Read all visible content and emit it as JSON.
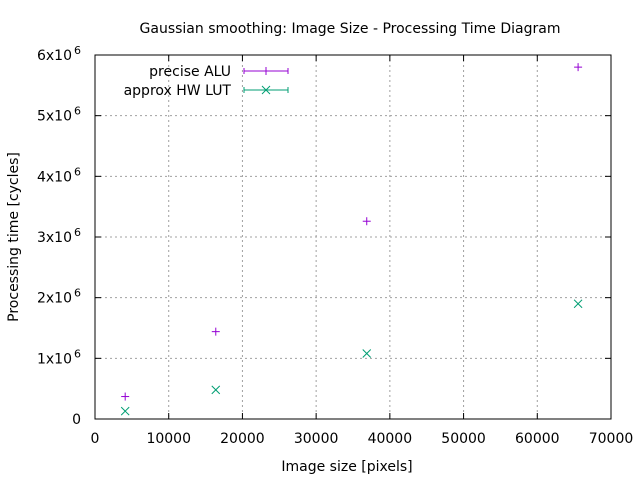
{
  "chart_data": {
    "type": "scatter",
    "title": "Gaussian smoothing: Image Size - Processing Time Diagram",
    "xlabel": "Image size [pixels]",
    "ylabel": "Processing time [cycles]",
    "xlim": [
      0,
      70000
    ],
    "ylim": [
      0,
      6000000
    ],
    "grid": true,
    "legend_position": "top-left",
    "x_ticks": [
      {
        "value": 0,
        "label": "0"
      },
      {
        "value": 10000,
        "label": "10000"
      },
      {
        "value": 20000,
        "label": "20000"
      },
      {
        "value": 30000,
        "label": "30000"
      },
      {
        "value": 40000,
        "label": "40000"
      },
      {
        "value": 50000,
        "label": "50000"
      },
      {
        "value": 60000,
        "label": "60000"
      },
      {
        "value": 70000,
        "label": "70000"
      }
    ],
    "y_ticks": [
      {
        "value": 0,
        "label": "0",
        "exp": ""
      },
      {
        "value": 1000000,
        "label": "1x10",
        "exp": "6"
      },
      {
        "value": 2000000,
        "label": "2x10",
        "exp": "6"
      },
      {
        "value": 3000000,
        "label": "3x10",
        "exp": "6"
      },
      {
        "value": 4000000,
        "label": "4x10",
        "exp": "6"
      },
      {
        "value": 5000000,
        "label": "5x10",
        "exp": "6"
      },
      {
        "value": 6000000,
        "label": "6x10",
        "exp": "6"
      }
    ],
    "series": [
      {
        "name": "precise ALU",
        "marker": "plus",
        "color": "#9400d3",
        "points": [
          [
            4096,
            370000
          ],
          [
            16384,
            1440000
          ],
          [
            36864,
            3260000
          ],
          [
            65536,
            5800000
          ]
        ]
      },
      {
        "name": "approx HW LUT",
        "marker": "cross",
        "color": "#009e73",
        "points": [
          [
            4096,
            130000
          ],
          [
            16384,
            480000
          ],
          [
            36864,
            1080000
          ],
          [
            65536,
            1900000
          ]
        ]
      }
    ]
  }
}
